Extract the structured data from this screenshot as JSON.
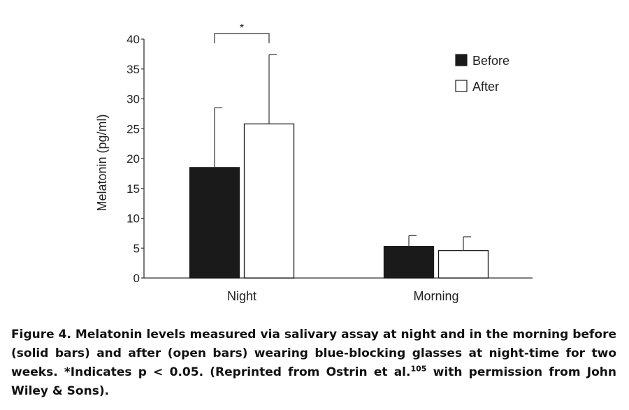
{
  "chart_data": {
    "type": "bar",
    "categories": [
      "Night",
      "Morning"
    ],
    "series": [
      {
        "name": "Before",
        "values": [
          18.5,
          5.3
        ],
        "errors": [
          10.0,
          1.8
        ],
        "color": "#1a1a1a"
      },
      {
        "name": "After",
        "values": [
          25.8,
          4.6
        ],
        "errors": [
          11.6,
          2.3
        ],
        "color": "#ffffff"
      }
    ],
    "ylabel": "Melatonin (pg/ml)",
    "ylim": [
      0,
      40
    ],
    "yticks": [
      0,
      5,
      10,
      15,
      20,
      25,
      30,
      35,
      40
    ],
    "grid": false,
    "legend_position": "top-right",
    "annotations": [
      {
        "text": "*",
        "category": "Night",
        "between": [
          "Before",
          "After"
        ]
      }
    ]
  },
  "caption": {
    "prefix": "Figure 4. Melatonin levels measured via salivary assay at night and in the morning before (solid bars) and after (open bars) wearing blue-blocking glasses at night-time for two weeks. *Indicates p < 0.05. (Reprinted from Ostrin et al.",
    "ref": "105",
    "suffix": " with permission from John Wiley & Sons)."
  }
}
